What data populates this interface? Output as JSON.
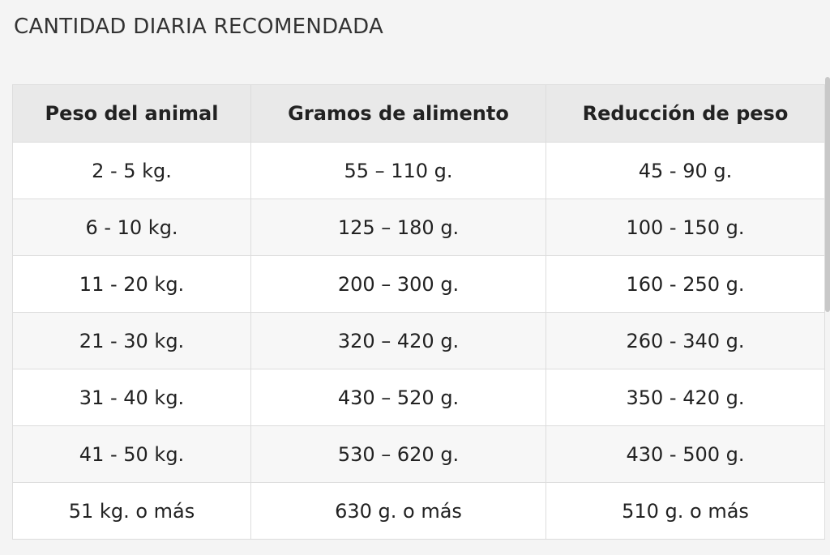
{
  "title": "CANTIDAD DIARIA RECOMENDADA",
  "table": {
    "headers": [
      "Peso del animal",
      "Gramos de alimento",
      "Reducción de peso"
    ],
    "rows": [
      [
        "2 - 5 kg.",
        "55 – 110 g.",
        "45 - 90 g."
      ],
      [
        "6 - 10 kg.",
        "125 – 180 g.",
        "100 - 150 g."
      ],
      [
        "11 - 20 kg.",
        "200 – 300 g.",
        "160 - 250 g."
      ],
      [
        "21 - 30 kg.",
        "320 – 420 g.",
        "260 - 340 g."
      ],
      [
        "31 - 40 kg.",
        "430 – 520 g.",
        "350 - 420 g."
      ],
      [
        "41 - 50 kg.",
        "530 – 620 g.",
        "430 - 500 g."
      ],
      [
        "51 kg. o más",
        "630 g. o más",
        "510 g. o más"
      ]
    ]
  }
}
